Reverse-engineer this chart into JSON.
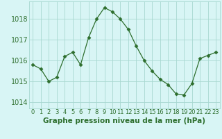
{
  "x": [
    0,
    1,
    2,
    3,
    4,
    5,
    6,
    7,
    8,
    9,
    10,
    11,
    12,
    13,
    14,
    15,
    16,
    17,
    18,
    19,
    20,
    21,
    22,
    23
  ],
  "y": [
    1015.8,
    1015.6,
    1015.0,
    1015.2,
    1016.2,
    1016.4,
    1015.8,
    1017.1,
    1018.0,
    1018.55,
    1018.35,
    1018.0,
    1017.5,
    1016.7,
    1016.0,
    1015.5,
    1015.1,
    1014.85,
    1014.4,
    1014.35,
    1014.9,
    1016.1,
    1016.25,
    1016.4
  ],
  "line_color": "#2d6e2d",
  "marker": "D",
  "marker_size": 2.5,
  "background_color": "#d8f5f5",
  "grid_color": "#a8d8d0",
  "ylabel_ticks": [
    1014,
    1015,
    1016,
    1017,
    1018
  ],
  "xlabel": "Graphe pression niveau de la mer (hPa)",
  "xlim": [
    -0.5,
    23.5
  ],
  "ylim": [
    1013.7,
    1018.85
  ],
  "tick_label_color": "#2d6e2d",
  "xlabel_color": "#2d6e2d",
  "xlabel_fontsize": 7.5,
  "tick_fontsize": 7,
  "xtick_fontsize": 6
}
